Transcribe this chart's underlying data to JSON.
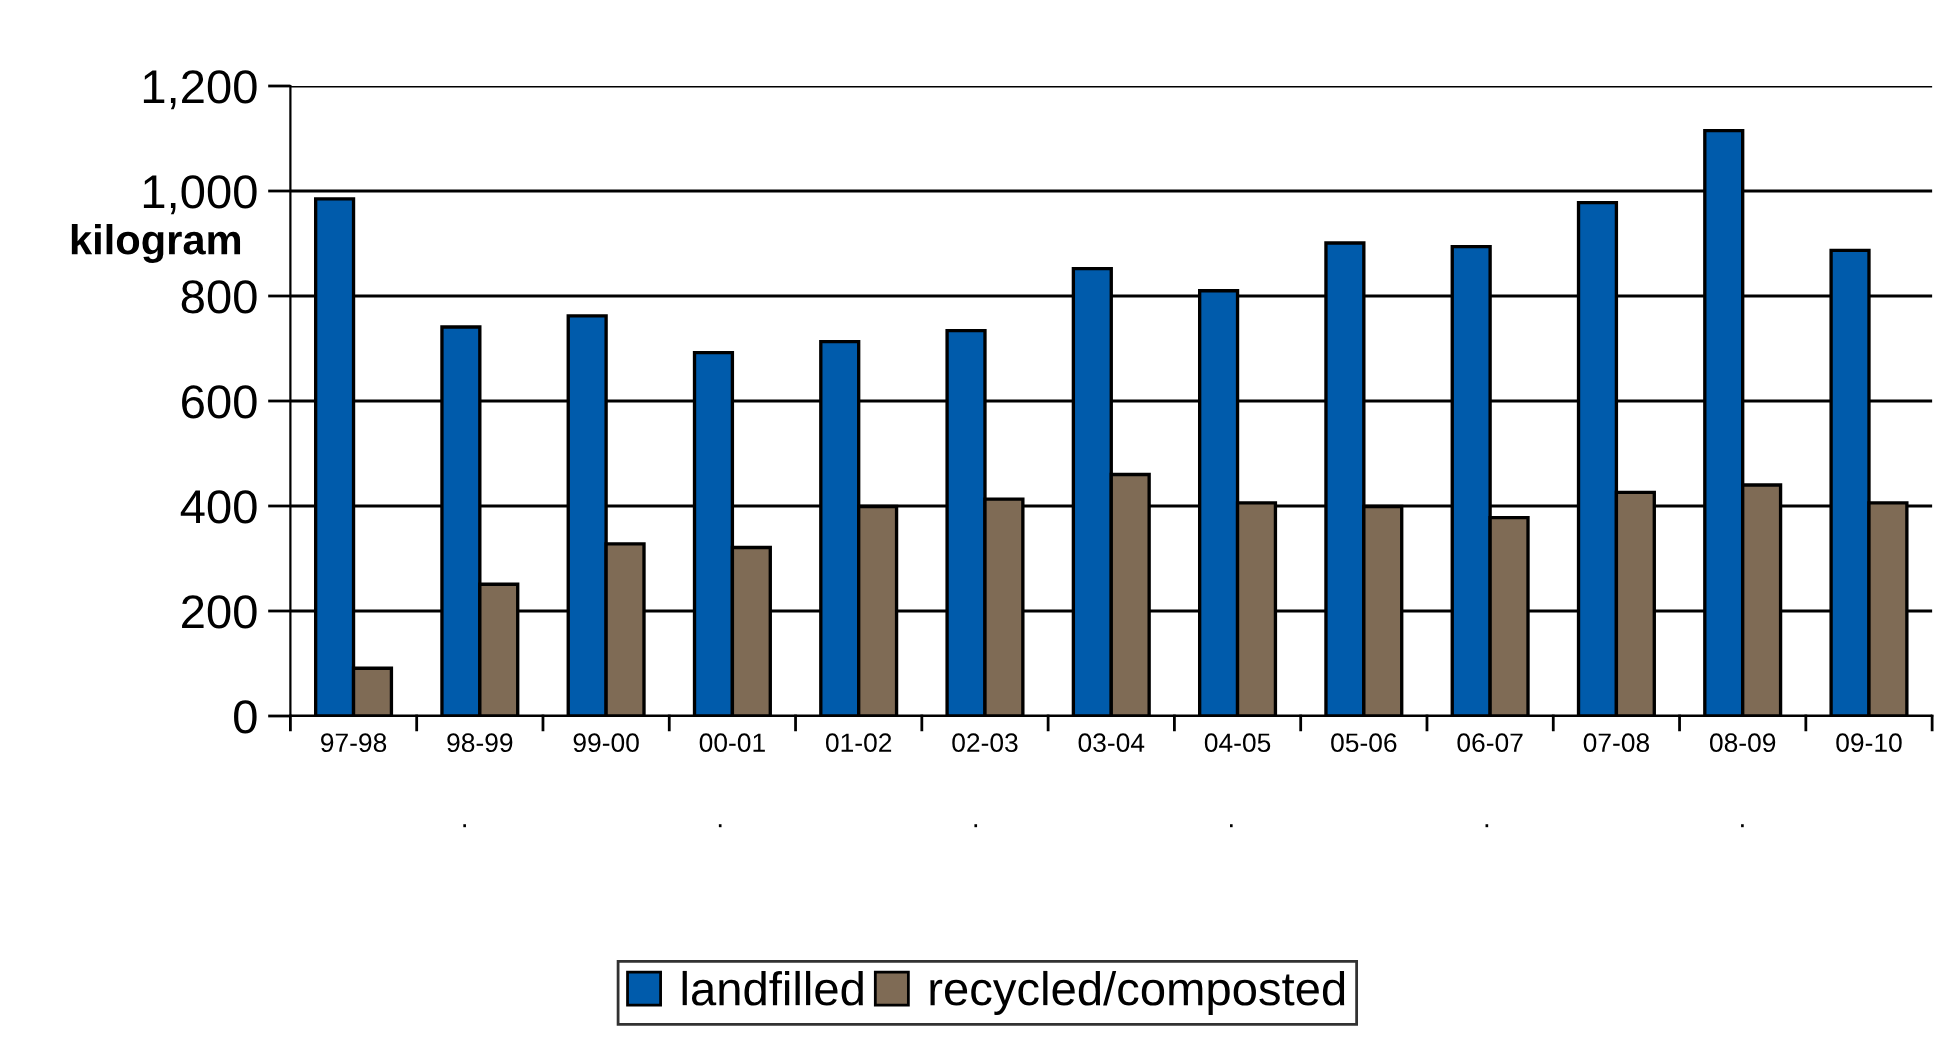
{
  "chart_data": {
    "type": "bar",
    "ylabel": "kilogram",
    "categories": [
      "97-98",
      "98-99",
      "99-00",
      "00-01",
      "01-02",
      "02-03",
      "03-04",
      "04-05",
      "05-06",
      "06-07",
      "07-08",
      "08-09",
      "09-10"
    ],
    "series": [
      {
        "name": "landfilled",
        "color": "#005bab",
        "values": [
          985,
          741,
          762,
          692,
          713,
          734,
          852,
          810,
          901,
          894,
          978,
          1115,
          887
        ]
      },
      {
        "name": "recycled/composted",
        "color": "#7f6b55",
        "values": [
          91,
          251,
          328,
          321,
          399,
          413,
          460,
          406,
          399,
          378,
          426,
          440,
          406
        ]
      }
    ],
    "ylim": [
      0,
      1200
    ],
    "yticks": [
      0,
      200,
      400,
      600,
      800,
      {
        "value": 1000,
        "label": "1,000"
      },
      {
        "value": 1200,
        "label": "1,200"
      }
    ],
    "grid": "y",
    "legend": "bottom",
    "annotations": [
      ".",
      ".",
      ".",
      ".",
      ".",
      "."
    ]
  }
}
